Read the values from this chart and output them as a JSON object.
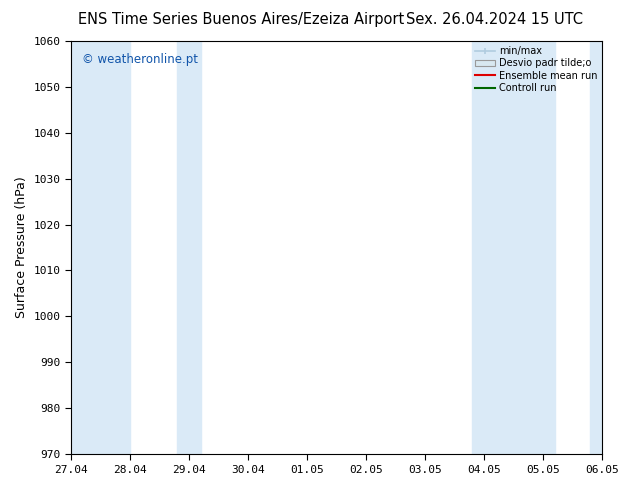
{
  "title_left": "ENS Time Series Buenos Aires/Ezeiza Airport",
  "title_right": "Sex. 26.04.2024 15 UTC",
  "ylabel": "Surface Pressure (hPa)",
  "ylim": [
    970,
    1060
  ],
  "yticks": [
    970,
    980,
    990,
    1000,
    1010,
    1020,
    1030,
    1040,
    1050,
    1060
  ],
  "xtick_labels": [
    "27.04",
    "28.04",
    "29.04",
    "30.04",
    "01.05",
    "02.05",
    "03.05",
    "04.05",
    "05.05",
    "06.05"
  ],
  "shade_color": "#daeaf7",
  "watermark": "© weatheronline.pt",
  "legend_entries": [
    "min/max",
    "Desvio padr tilde;o",
    "Ensemble mean run",
    "Controll run"
  ],
  "legend_colors": [
    "#b0cce0",
    "#c8dff0",
    "#dd0000",
    "#006600"
  ],
  "background_color": "#ffffff",
  "title_fontsize": 10.5,
  "ylabel_fontsize": 9,
  "tick_fontsize": 8,
  "watermark_color": "#1155aa"
}
